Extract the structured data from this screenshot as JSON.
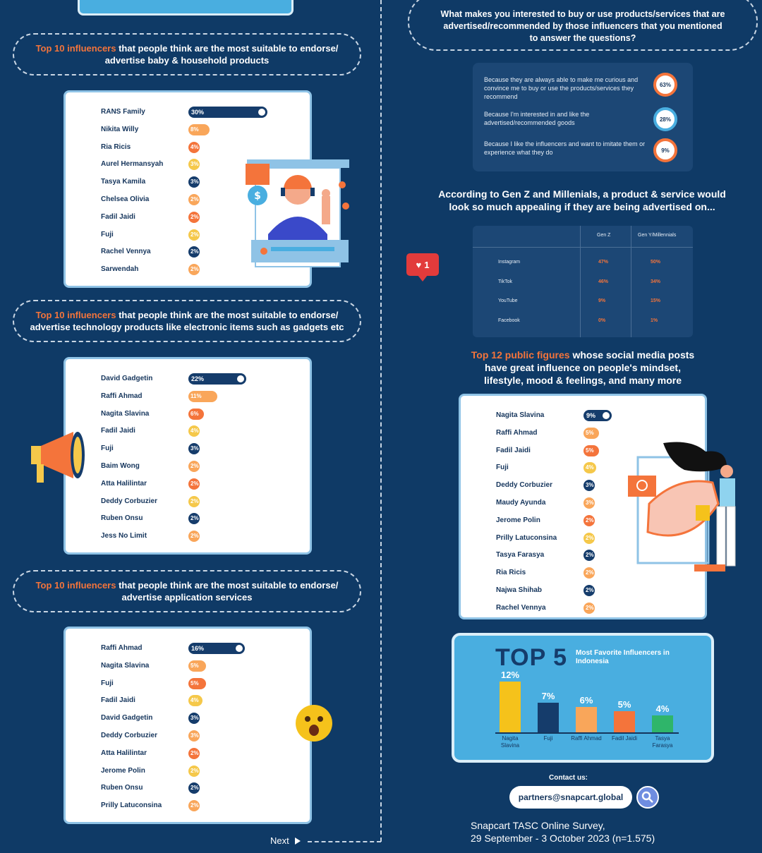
{
  "sections_left": [
    {
      "title_highlight": "Top 10 influencers",
      "title_rest_1": " that people think are the most suitable to endorse/",
      "title_rest_2": "advertise baby & household products",
      "items": [
        {
          "name": "RANS Family",
          "value": 30,
          "label": "30%",
          "color": "#153c6b"
        },
        {
          "name": "Nikita Willy",
          "value": 8,
          "label": "8%",
          "color": "#f9a65a"
        },
        {
          "name": "Ria Ricis",
          "value": 4,
          "label": "4%",
          "color": "#f4743b"
        },
        {
          "name": "Aurel Hermansyah",
          "value": 3,
          "label": "3%",
          "color": "#f5c84a"
        },
        {
          "name": "Tasya Kamila",
          "value": 3,
          "label": "3%",
          "color": "#153c6b"
        },
        {
          "name": "Chelsea Olivia",
          "value": 2,
          "label": "2%",
          "color": "#f9a65a"
        },
        {
          "name": "Fadil Jaidi",
          "value": 2,
          "label": "2%",
          "color": "#f4743b"
        },
        {
          "name": "Fuji",
          "value": 2,
          "label": "2%",
          "color": "#f5c84a"
        },
        {
          "name": "Rachel Vennya",
          "value": 2,
          "label": "2%",
          "color": "#153c6b"
        },
        {
          "name": "Sarwendah",
          "value": 2,
          "label": "2%",
          "color": "#f9a65a"
        }
      ]
    },
    {
      "title_highlight": "Top 10 influencers",
      "title_rest_1": " that people think are the most suitable to endorse/",
      "title_rest_2": "advertise technology products like electronic items such as gadgets etc",
      "items": [
        {
          "name": "David Gadgetin",
          "value": 22,
          "label": "22%",
          "color": "#153c6b"
        },
        {
          "name": "Raffi Ahmad",
          "value": 11,
          "label": "11%",
          "color": "#f9a65a"
        },
        {
          "name": "Nagita Slavina",
          "value": 6,
          "label": "6%",
          "color": "#f4743b"
        },
        {
          "name": "Fadil Jaidi",
          "value": 4,
          "label": "4%",
          "color": "#f5c84a"
        },
        {
          "name": "Fuji",
          "value": 3,
          "label": "3%",
          "color": "#153c6b"
        },
        {
          "name": "Baim Wong",
          "value": 2,
          "label": "2%",
          "color": "#f9a65a"
        },
        {
          "name": "Atta Halilintar",
          "value": 2,
          "label": "2%",
          "color": "#f4743b"
        },
        {
          "name": "Deddy Corbuzier",
          "value": 2,
          "label": "2%",
          "color": "#f5c84a"
        },
        {
          "name": "Ruben Onsu",
          "value": 2,
          "label": "2%",
          "color": "#153c6b"
        },
        {
          "name": "Jess No Limit",
          "value": 2,
          "label": "2%",
          "color": "#f9a65a"
        }
      ]
    },
    {
      "title_highlight": "Top 10 influencers",
      "title_rest_1": " that people think are the most suitable to endorse/",
      "title_rest_2": "advertise application services",
      "items": [
        {
          "name": "Raffi Ahmad",
          "value": 16,
          "label": "16%",
          "color": "#153c6b"
        },
        {
          "name": "Nagita Slavina",
          "value": 5,
          "label": "5%",
          "color": "#f9a65a"
        },
        {
          "name": "Fuji",
          "value": 5,
          "label": "5%",
          "color": "#f4743b"
        },
        {
          "name": "Fadil Jaidi",
          "value": 4,
          "label": "4%",
          "color": "#f5c84a"
        },
        {
          "name": "David Gadgetin",
          "value": 3,
          "label": "3%",
          "color": "#153c6b"
        },
        {
          "name": "Deddy Corbuzier",
          "value": 3,
          "label": "3%",
          "color": "#f9a65a"
        },
        {
          "name": "Atta Halilintar",
          "value": 2,
          "label": "2%",
          "color": "#f4743b"
        },
        {
          "name": "Jerome Polin",
          "value": 2,
          "label": "2%",
          "color": "#f5c84a"
        },
        {
          "name": "Ruben Onsu",
          "value": 2,
          "label": "2%",
          "color": "#153c6b"
        },
        {
          "name": "Prilly Latuconsina",
          "value": 2,
          "label": "2%",
          "color": "#f9a65a"
        }
      ]
    }
  ],
  "question": {
    "line1": "What makes you interested to buy or use products/services that are",
    "line2": "advertised/recommended by those influencers that you mentioned",
    "line3": "to answer the questions?",
    "reasons": [
      {
        "text": "Because they are always able to make me curious and convince me to buy or use the products/services they recommend",
        "label": "63%",
        "color": "#f4743b"
      },
      {
        "text": "Because I'm interested in and like the advertised/recommended goods",
        "label": "28%",
        "color": "#49aee0"
      },
      {
        "text": "Because I like the influencers and want to imitate them or experience what they do",
        "label": "9%",
        "color": "#f4743b"
      }
    ]
  },
  "platform": {
    "title1": "According to Gen Z and Millenials, a product & service would",
    "title2": "look so much appealing if they are being advertised on...",
    "col1": "Gen Z",
    "col2": "Gen Y/Millennials",
    "rows": [
      {
        "name": "Instagram",
        "genz": "47%",
        "geny": "50%"
      },
      {
        "name": "TikTok",
        "genz": "46%",
        "geny": "34%"
      },
      {
        "name": "YouTube",
        "genz": "9%",
        "geny": "15%"
      },
      {
        "name": "Facebook",
        "genz": "0%",
        "geny": "1%"
      }
    ],
    "like_count": "1"
  },
  "figures": {
    "title_highlight": "Top 12 public figures",
    "title_rest_1": " whose social media posts",
    "title_rest_2": "have great influence on people's mindset,",
    "title_rest_3": "lifestyle, mood & feelings, and many more",
    "items": [
      {
        "name": "Nagita Slavina",
        "value": 9,
        "label": "9%",
        "color": "#153c6b"
      },
      {
        "name": "Raffi Ahmad",
        "value": 5,
        "label": "5%",
        "color": "#f9a65a"
      },
      {
        "name": "Fadil Jaidi",
        "value": 5,
        "label": "5%",
        "color": "#f4743b"
      },
      {
        "name": "Fuji",
        "value": 4,
        "label": "4%",
        "color": "#f5c84a"
      },
      {
        "name": "Deddy Corbuzier",
        "value": 3,
        "label": "3%",
        "color": "#153c6b"
      },
      {
        "name": "Maudy Ayunda",
        "value": 3,
        "label": "3%",
        "color": "#f9a65a"
      },
      {
        "name": "Jerome Polin",
        "value": 2,
        "label": "2%",
        "color": "#f4743b"
      },
      {
        "name": "Prilly Latuconsina",
        "value": 2,
        "label": "2%",
        "color": "#f5c84a"
      },
      {
        "name": "Tasya Farasya",
        "value": 2,
        "label": "2%",
        "color": "#153c6b"
      },
      {
        "name": "Ria Ricis",
        "value": 2,
        "label": "2%",
        "color": "#f9a65a"
      },
      {
        "name": "Najwa Shihab",
        "value": 2,
        "label": "2%",
        "color": "#153c6b"
      },
      {
        "name": "Rachel Vennya",
        "value": 2,
        "label": "2%",
        "color": "#f9a65a"
      }
    ]
  },
  "chart_data": {
    "type": "bar",
    "title": "TOP 5",
    "subtitle": "Most Favorite Influencers in Indonesia",
    "categories": [
      "Nagita Slavina",
      "Fuji",
      "Raffi Ahmad",
      "Fadil Jaidi",
      "Tasya Farasya"
    ],
    "values": [
      12,
      7,
      6,
      5,
      4
    ],
    "labels": [
      "12%",
      "7%",
      "6%",
      "5%",
      "4%"
    ],
    "colors": [
      "#f5c21b",
      "#153c6b",
      "#f9a65a",
      "#f4743b",
      "#2fb56a"
    ],
    "ylim": [
      0,
      12
    ]
  },
  "footer": {
    "contact_label": "Contact us:",
    "email": "partners@snapcart.global",
    "survey1": "Snapcart TASC Online Survey,",
    "survey2": "29 September - 3 October 2023 (n=1.575)",
    "next": "Next"
  }
}
